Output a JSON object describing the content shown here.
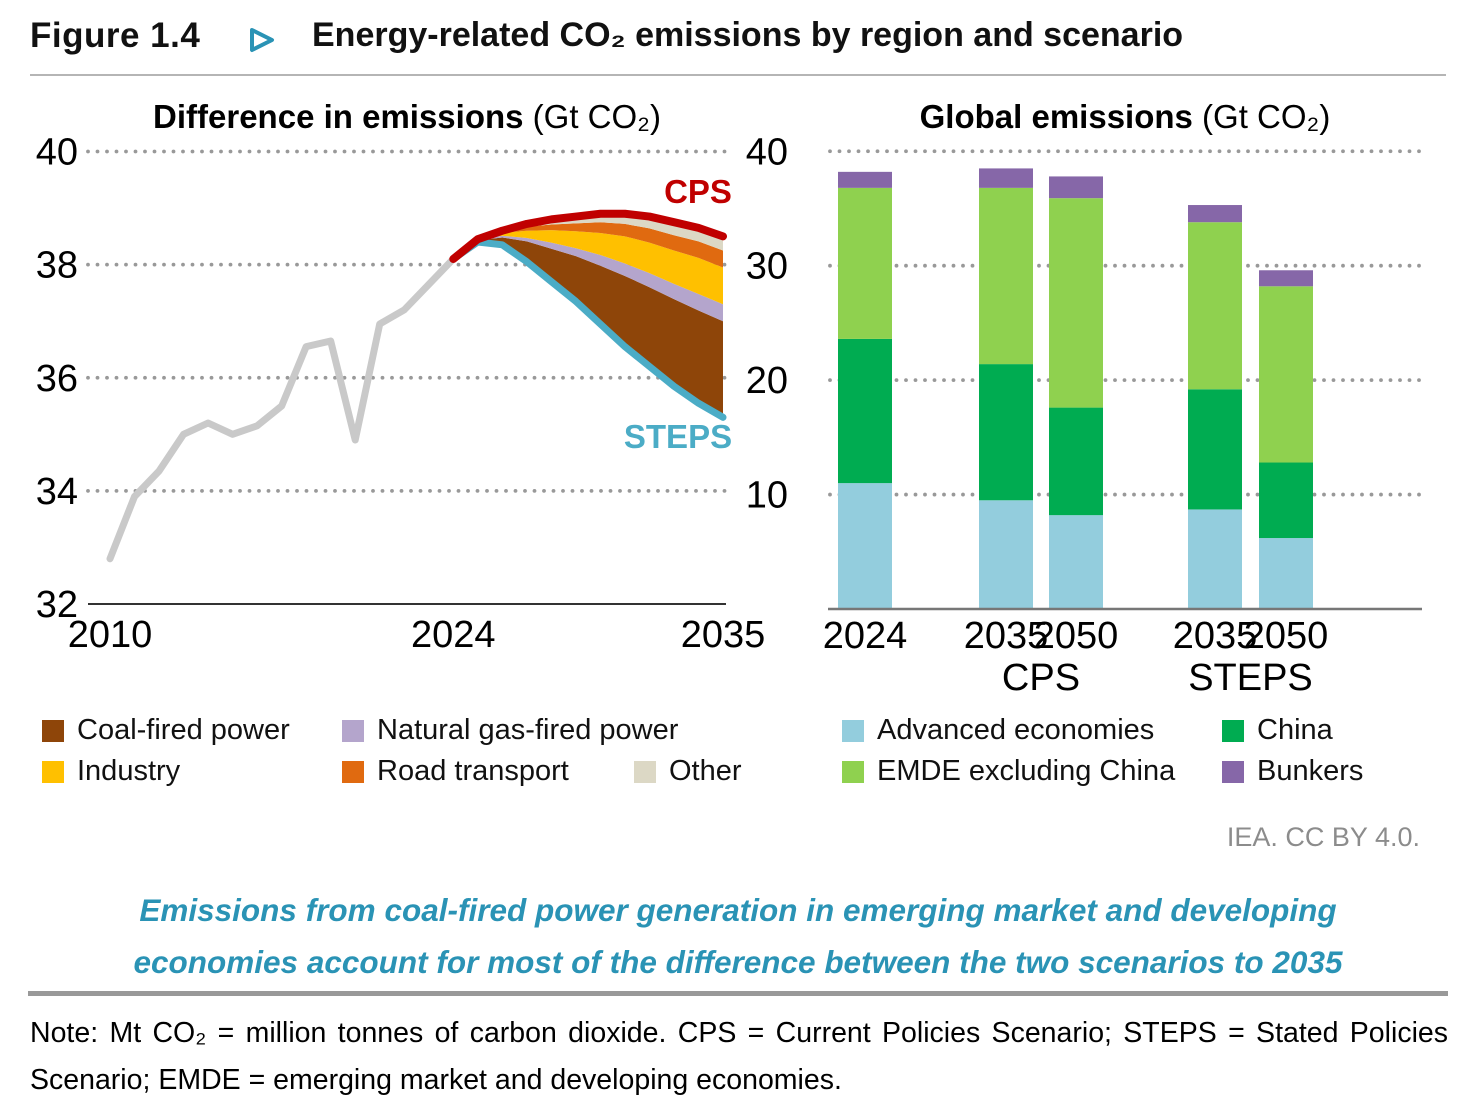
{
  "header": {
    "figure_label": "Figure 1.4",
    "title": "Energy-related CO₂ emissions by region and scenario"
  },
  "attribution": "IEA. CC BY 4.0.",
  "summary_lines": [
    "Emissions from coal-fired power generation in emerging market and developing",
    "economies account for most of the difference between the two scenarios to 2035"
  ],
  "note": "Note: Mt CO₂ = million tonnes of carbon dioxide. CPS = Current Policies Scenario; STEPS = Stated Policies Scenario; EMDE = emerging market and developing economies.",
  "colors": {
    "accent_teal": "#2A93B5",
    "cps_red": "#C00000",
    "steps_blue": "#4BACC6",
    "historical_gray": "#C9C9C9",
    "gridline_gray": "#999999",
    "attribution_gray": "#8c8c8c"
  },
  "chart_data": [
    {
      "type": "area",
      "title_bold": "Difference in emissions",
      "title_unit": " (Gt CO₂)",
      "ylim": [
        32,
        40
      ],
      "yticks": [
        40,
        38,
        36,
        34,
        32
      ],
      "xticks": [
        2010,
        2024,
        2035
      ],
      "grid": "dotted",
      "historical": {
        "years": [
          2010,
          2011,
          2012,
          2013,
          2014,
          2015,
          2016,
          2017,
          2018,
          2019,
          2020,
          2021,
          2022,
          2023,
          2024
        ],
        "values": [
          32.8,
          33.9,
          34.35,
          35.0,
          35.2,
          35.0,
          35.15,
          35.5,
          36.55,
          36.65,
          34.9,
          36.95,
          37.2,
          37.65,
          38.1
        ]
      },
      "scenario_years": [
        2024,
        2025,
        2026,
        2027,
        2028,
        2029,
        2030,
        2031,
        2032,
        2033,
        2034,
        2035
      ],
      "steps": [
        38.1,
        38.4,
        38.35,
        38.05,
        37.7,
        37.35,
        36.95,
        36.55,
        36.2,
        35.85,
        35.55,
        35.3
      ],
      "cps": [
        38.1,
        38.45,
        38.6,
        38.72,
        38.8,
        38.85,
        38.9,
        38.9,
        38.85,
        38.75,
        38.65,
        38.5
      ],
      "stack_boundaries": {
        "coal_top": [
          38.1,
          38.43,
          38.48,
          38.41,
          38.28,
          38.15,
          37.98,
          37.8,
          37.6,
          37.39,
          37.19,
          37.0
        ],
        "gas_top": [
          38.1,
          38.44,
          38.51,
          38.47,
          38.39,
          38.29,
          38.17,
          38.02,
          37.85,
          37.66,
          37.48,
          37.3
        ],
        "industry_top": [
          38.1,
          38.44,
          38.56,
          38.6,
          38.61,
          38.59,
          38.56,
          38.5,
          38.39,
          38.25,
          38.12,
          37.95
        ],
        "road_top": [
          38.1,
          38.45,
          38.58,
          38.67,
          38.71,
          38.73,
          38.75,
          38.72,
          38.64,
          38.52,
          38.41,
          38.25
        ]
      },
      "line_labels": {
        "cps": "CPS",
        "steps": "STEPS"
      },
      "legend": [
        {
          "label": "Coal-fired power",
          "color": "#8E4509"
        },
        {
          "label": "Natural gas-fired power",
          "color": "#B4A5CC"
        },
        {
          "label": "Industry",
          "color": "#FFC000"
        },
        {
          "label": "Road transport",
          "color": "#E06A10"
        },
        {
          "label": "Other",
          "color": "#DCD8C5"
        }
      ]
    },
    {
      "type": "bar",
      "title_bold": "Global emissions",
      "title_unit": " (Gt CO₂)",
      "ylim": [
        0,
        40
      ],
      "yticks": [
        40,
        30,
        20,
        10
      ],
      "grid": "dotted",
      "legend": [
        {
          "label": "Advanced economies",
          "color": "#93CDDD"
        },
        {
          "label": "China",
          "color": "#00AC51"
        },
        {
          "label": "EMDE excluding China",
          "color": "#8FD14F"
        },
        {
          "label": "Bunkers",
          "color": "#8667A8"
        }
      ],
      "bars": [
        {
          "label": "2024",
          "group": "",
          "values": [
            11.0,
            12.6,
            13.2,
            1.4
          ]
        },
        {
          "label": "2035",
          "group": "CPS",
          "values": [
            9.5,
            11.9,
            15.4,
            1.7
          ]
        },
        {
          "label": "2050",
          "group": "CPS",
          "values": [
            8.2,
            9.4,
            18.3,
            1.9
          ]
        },
        {
          "label": "2035",
          "group": "STEPS",
          "values": [
            8.7,
            10.5,
            14.6,
            1.5
          ]
        },
        {
          "label": "2050",
          "group": "STEPS",
          "values": [
            6.2,
            6.6,
            15.4,
            1.4
          ]
        }
      ],
      "group_labels": [
        "CPS",
        "STEPS"
      ]
    }
  ]
}
